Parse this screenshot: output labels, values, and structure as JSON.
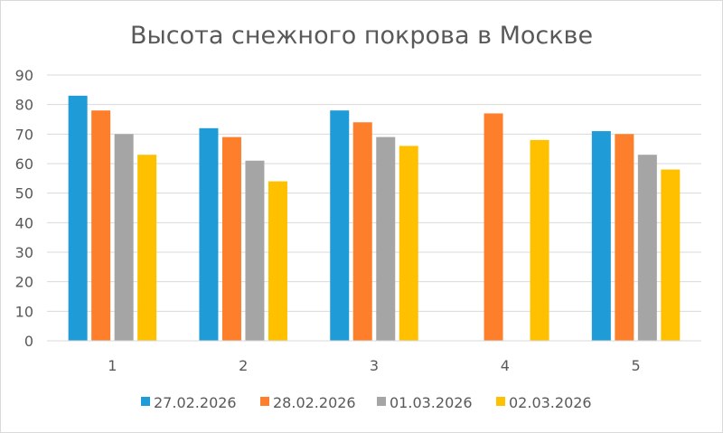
{
  "chart_data": {
    "type": "bar",
    "title": "Высота снежного покрова в Москве",
    "xlabel": "",
    "ylabel": "",
    "categories": [
      "1",
      "2",
      "3",
      "4",
      "5"
    ],
    "ylim": [
      0,
      90
    ],
    "yticks": [
      "0",
      "10",
      "20",
      "30",
      "40",
      "50",
      "60",
      "70",
      "80",
      "90"
    ],
    "grid": true,
    "legend_position": "bottom",
    "series": [
      {
        "name": "27.02.2026",
        "color": "#1f9bd7",
        "values": [
          83,
          72,
          78,
          null,
          71
        ]
      },
      {
        "name": "28.02.2026",
        "color": "#fd7f2c",
        "values": [
          78,
          69,
          74,
          77,
          70
        ]
      },
      {
        "name": "01.03.2026",
        "color": "#a5a5a5",
        "values": [
          70,
          61,
          69,
          null,
          63
        ]
      },
      {
        "name": "02.03.2026",
        "color": "#ffc000",
        "values": [
          63,
          54,
          66,
          68,
          58
        ]
      }
    ]
  }
}
